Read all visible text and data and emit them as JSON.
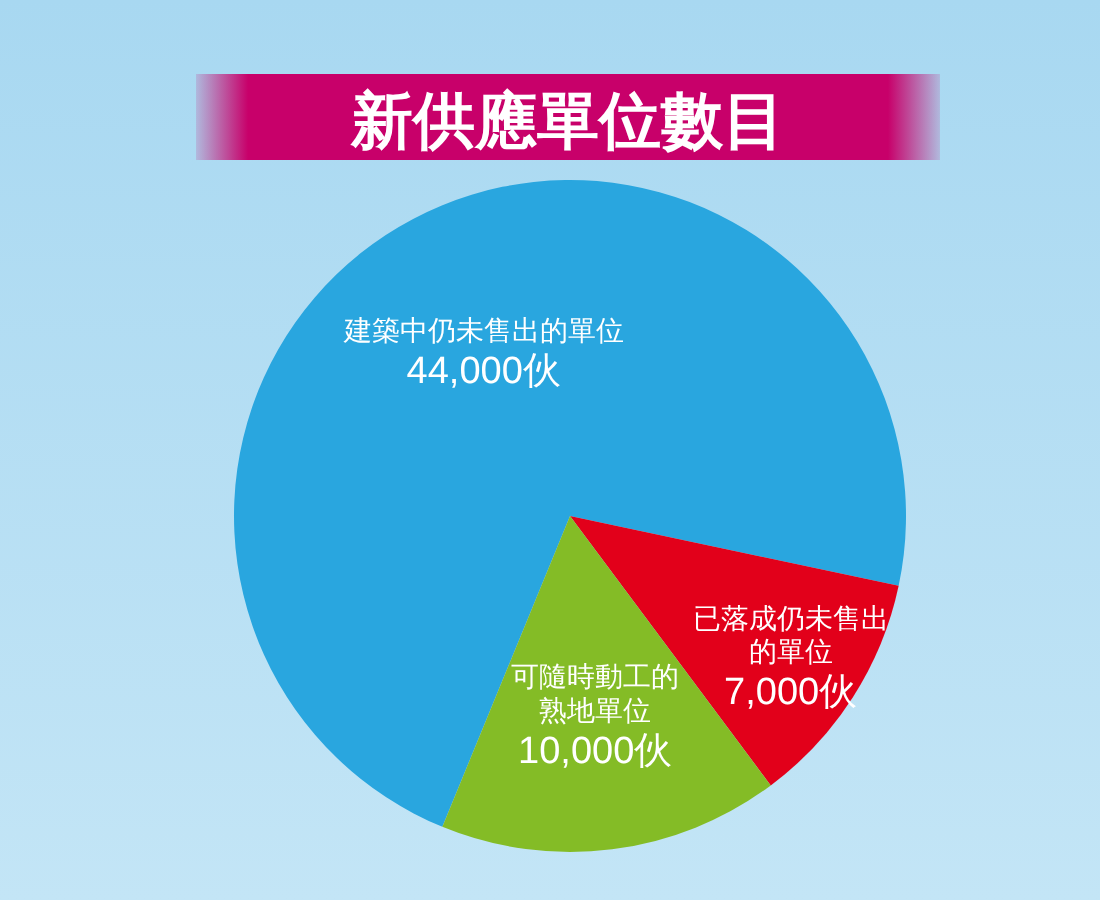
{
  "chart_data": {
    "type": "pie",
    "title": "新供應單位數目",
    "categories": [
      "建築中仍未售出的單位",
      "已落成仍未售出的單位",
      "可隨時動工的熟地單位"
    ],
    "values": [
      44000,
      7000,
      10000
    ],
    "colors": [
      "#29a6df",
      "#e2001a",
      "#84bc26"
    ],
    "value_labels": [
      "44,000伙",
      "7,000伙",
      "10,000伙"
    ]
  }
}
